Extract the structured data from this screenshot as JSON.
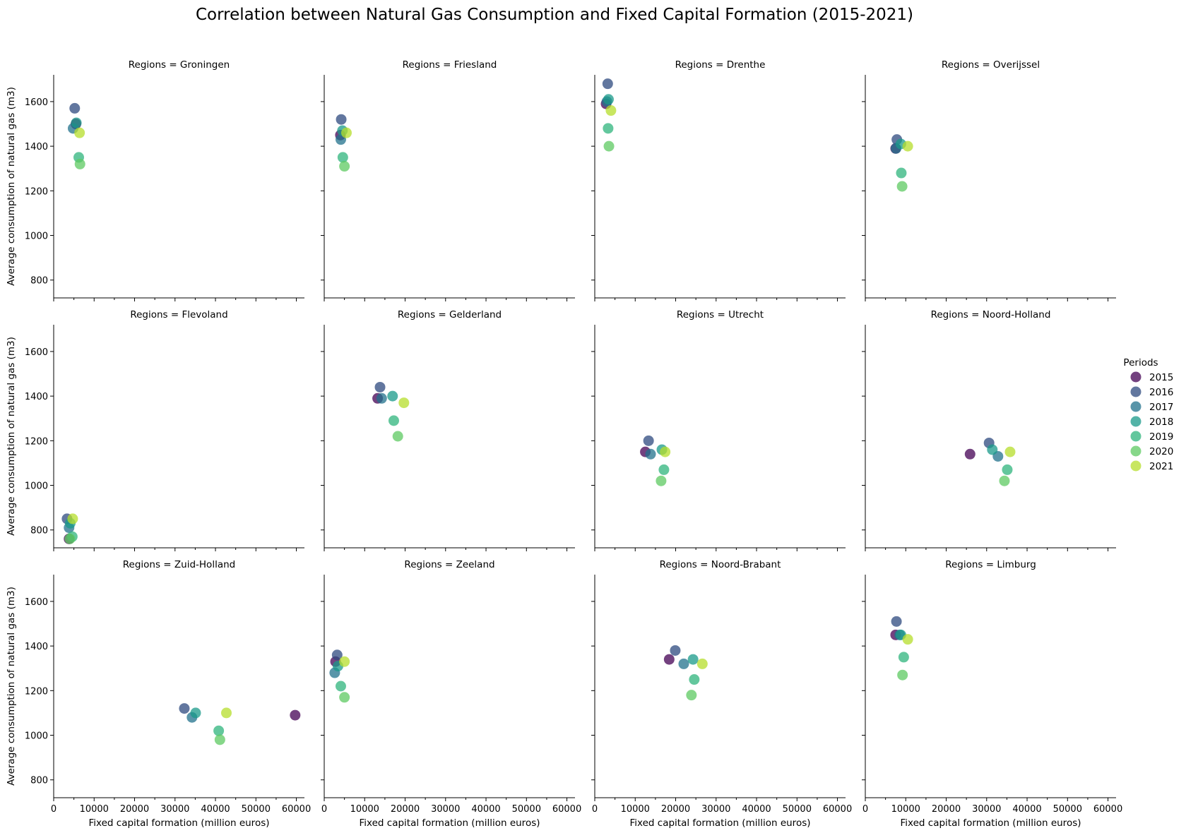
{
  "chart_data": {
    "type": "scatter",
    "title": "Correlation between Natural Gas Consumption and Fixed Capital Formation (2015-2021)",
    "xlabel": "Fixed capital formation (million euros)",
    "ylabel": "Average consumption of natural gas (m3)",
    "facet_label_prefix": "Regions = ",
    "xlim": [
      0,
      62000
    ],
    "ylim": [
      720,
      1720
    ],
    "xticks": [
      0,
      10000,
      20000,
      30000,
      40000,
      50000,
      60000
    ],
    "yticks": [
      800,
      1000,
      1200,
      1400,
      1600
    ],
    "legend": {
      "title": "Periods",
      "placement": "right",
      "entries": [
        {
          "label": "2015",
          "color": "#440154"
        },
        {
          "label": "2016",
          "color": "#2d4a7f"
        },
        {
          "label": "2017",
          "color": "#21728c"
        },
        {
          "label": "2018",
          "color": "#199a8a"
        },
        {
          "label": "2019",
          "color": "#2fb47c"
        },
        {
          "label": "2020",
          "color": "#5ec962"
        },
        {
          "label": "2021",
          "color": "#b5de2b"
        }
      ]
    },
    "periods": [
      "2015",
      "2016",
      "2017",
      "2018",
      "2019",
      "2020",
      "2021"
    ],
    "regions": [
      {
        "name": "Groningen",
        "points": [
          {
            "period": "2015",
            "x": 5500,
            "y": 1500
          },
          {
            "period": "2016",
            "x": 5200,
            "y": 1570
          },
          {
            "period": "2017",
            "x": 4800,
            "y": 1480
          },
          {
            "period": "2018",
            "x": 5600,
            "y": 1505
          },
          {
            "period": "2019",
            "x": 6200,
            "y": 1350
          },
          {
            "period": "2020",
            "x": 6500,
            "y": 1320
          },
          {
            "period": "2021",
            "x": 6400,
            "y": 1460
          }
        ]
      },
      {
        "name": "Friesland",
        "points": [
          {
            "period": "2015",
            "x": 4000,
            "y": 1450
          },
          {
            "period": "2016",
            "x": 4200,
            "y": 1520
          },
          {
            "period": "2017",
            "x": 4100,
            "y": 1430
          },
          {
            "period": "2018",
            "x": 4500,
            "y": 1470
          },
          {
            "period": "2019",
            "x": 4600,
            "y": 1350
          },
          {
            "period": "2020",
            "x": 5000,
            "y": 1310
          },
          {
            "period": "2021",
            "x": 5500,
            "y": 1460
          }
        ]
      },
      {
        "name": "Drenthe",
        "points": [
          {
            "period": "2015",
            "x": 2800,
            "y": 1590
          },
          {
            "period": "2016",
            "x": 3200,
            "y": 1680
          },
          {
            "period": "2017",
            "x": 3000,
            "y": 1600
          },
          {
            "period": "2018",
            "x": 3400,
            "y": 1610
          },
          {
            "period": "2019",
            "x": 3300,
            "y": 1480
          },
          {
            "period": "2020",
            "x": 3500,
            "y": 1400
          },
          {
            "period": "2021",
            "x": 4000,
            "y": 1560
          }
        ]
      },
      {
        "name": "Overijssel",
        "points": [
          {
            "period": "2015",
            "x": 7500,
            "y": 1390
          },
          {
            "period": "2016",
            "x": 7800,
            "y": 1430
          },
          {
            "period": "2017",
            "x": 7600,
            "y": 1390
          },
          {
            "period": "2018",
            "x": 8800,
            "y": 1410
          },
          {
            "period": "2019",
            "x": 8900,
            "y": 1280
          },
          {
            "period": "2020",
            "x": 9100,
            "y": 1220
          },
          {
            "period": "2021",
            "x": 10500,
            "y": 1400
          }
        ]
      },
      {
        "name": "Flevoland",
        "points": [
          {
            "period": "2015",
            "x": 3800,
            "y": 760
          },
          {
            "period": "2016",
            "x": 3300,
            "y": 850
          },
          {
            "period": "2017",
            "x": 3800,
            "y": 810
          },
          {
            "period": "2018",
            "x": 4100,
            "y": 830
          },
          {
            "period": "2019",
            "x": 4600,
            "y": 770
          },
          {
            "period": "2020",
            "x": 4000,
            "y": 760
          },
          {
            "period": "2021",
            "x": 4700,
            "y": 850
          }
        ]
      },
      {
        "name": "Gelderland",
        "points": [
          {
            "period": "2015",
            "x": 13200,
            "y": 1390
          },
          {
            "period": "2016",
            "x": 13800,
            "y": 1440
          },
          {
            "period": "2017",
            "x": 14200,
            "y": 1390
          },
          {
            "period": "2018",
            "x": 16900,
            "y": 1400
          },
          {
            "period": "2019",
            "x": 17200,
            "y": 1290
          },
          {
            "period": "2020",
            "x": 18200,
            "y": 1220
          },
          {
            "period": "2021",
            "x": 19700,
            "y": 1370
          }
        ]
      },
      {
        "name": "Utrecht",
        "points": [
          {
            "period": "2015",
            "x": 12500,
            "y": 1150
          },
          {
            "period": "2016",
            "x": 13300,
            "y": 1200
          },
          {
            "period": "2017",
            "x": 13800,
            "y": 1140
          },
          {
            "period": "2018",
            "x": 16600,
            "y": 1160
          },
          {
            "period": "2019",
            "x": 17100,
            "y": 1070
          },
          {
            "period": "2020",
            "x": 16400,
            "y": 1020
          },
          {
            "period": "2021",
            "x": 17400,
            "y": 1150
          }
        ]
      },
      {
        "name": "Noord-Holland",
        "points": [
          {
            "period": "2015",
            "x": 25900,
            "y": 1140
          },
          {
            "period": "2016",
            "x": 30600,
            "y": 1190
          },
          {
            "period": "2017",
            "x": 32800,
            "y": 1130
          },
          {
            "period": "2018",
            "x": 31400,
            "y": 1160
          },
          {
            "period": "2019",
            "x": 35100,
            "y": 1070
          },
          {
            "period": "2020",
            "x": 34400,
            "y": 1020
          },
          {
            "period": "2021",
            "x": 35800,
            "y": 1150
          }
        ]
      },
      {
        "name": "Zuid-Holland",
        "points": [
          {
            "period": "2015",
            "x": 59700,
            "y": 1090
          },
          {
            "period": "2016",
            "x": 32300,
            "y": 1120
          },
          {
            "period": "2017",
            "x": 34200,
            "y": 1080
          },
          {
            "period": "2018",
            "x": 35100,
            "y": 1100
          },
          {
            "period": "2019",
            "x": 40800,
            "y": 1020
          },
          {
            "period": "2020",
            "x": 41100,
            "y": 980
          },
          {
            "period": "2021",
            "x": 42700,
            "y": 1100
          }
        ]
      },
      {
        "name": "Zeeland",
        "points": [
          {
            "period": "2015",
            "x": 2800,
            "y": 1330
          },
          {
            "period": "2016",
            "x": 3200,
            "y": 1360
          },
          {
            "period": "2017",
            "x": 2600,
            "y": 1280
          },
          {
            "period": "2018",
            "x": 3400,
            "y": 1310
          },
          {
            "period": "2019",
            "x": 4100,
            "y": 1220
          },
          {
            "period": "2020",
            "x": 5000,
            "y": 1170
          },
          {
            "period": "2021",
            "x": 5000,
            "y": 1330
          }
        ]
      },
      {
        "name": "Noord-Brabant",
        "points": [
          {
            "period": "2015",
            "x": 18400,
            "y": 1340
          },
          {
            "period": "2016",
            "x": 19900,
            "y": 1380
          },
          {
            "period": "2017",
            "x": 22000,
            "y": 1320
          },
          {
            "period": "2018",
            "x": 24300,
            "y": 1340
          },
          {
            "period": "2019",
            "x": 24600,
            "y": 1250
          },
          {
            "period": "2020",
            "x": 23900,
            "y": 1180
          },
          {
            "period": "2021",
            "x": 26600,
            "y": 1320
          }
        ]
      },
      {
        "name": "Limburg",
        "points": [
          {
            "period": "2015",
            "x": 7500,
            "y": 1450
          },
          {
            "period": "2016",
            "x": 7700,
            "y": 1510
          },
          {
            "period": "2017",
            "x": 8500,
            "y": 1450
          },
          {
            "period": "2018",
            "x": 8800,
            "y": 1450
          },
          {
            "period": "2019",
            "x": 9500,
            "y": 1350
          },
          {
            "period": "2020",
            "x": 9200,
            "y": 1270
          },
          {
            "period": "2021",
            "x": 10500,
            "y": 1430
          }
        ]
      }
    ]
  }
}
